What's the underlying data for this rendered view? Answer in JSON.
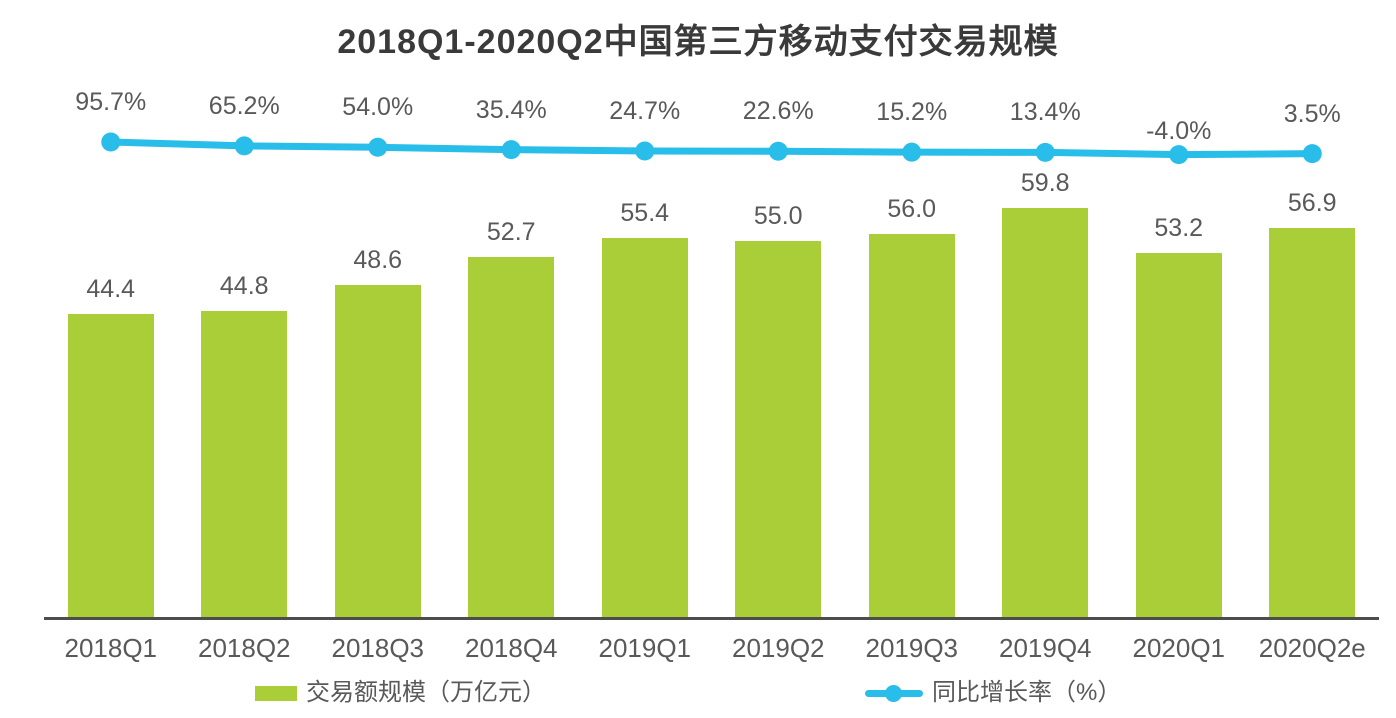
{
  "chart_data": {
    "type": "bar",
    "combo": true,
    "title": "2018Q1-2020Q2中国第三方移动支付交易规模",
    "categories": [
      "2018Q1",
      "2018Q2",
      "2018Q3",
      "2018Q4",
      "2019Q1",
      "2019Q2",
      "2019Q3",
      "2019Q4",
      "2020Q1",
      "2020Q2e"
    ],
    "series": [
      {
        "name": "交易额规模（万亿元）",
        "type": "bar",
        "values": [
          44.4,
          44.8,
          48.6,
          52.7,
          55.4,
          55.0,
          56.0,
          59.8,
          53.2,
          56.9
        ],
        "color": "#A9CE38",
        "unit": "万亿元"
      },
      {
        "name": "同比增长率（%）",
        "type": "line",
        "values": [
          95.7,
          65.2,
          54.0,
          35.4,
          24.7,
          22.6,
          15.2,
          13.4,
          -4.0,
          3.5
        ],
        "color": "#29BDE9",
        "unit": "%"
      }
    ],
    "value_labels": true,
    "grid": false,
    "legend_position": "bottom",
    "bar_axis_min": 0,
    "colors": {
      "title_text": "#3A3A3A",
      "label_text": "#595959",
      "axis_line": "#4D4D4D",
      "background": "#FFFFFF"
    }
  }
}
